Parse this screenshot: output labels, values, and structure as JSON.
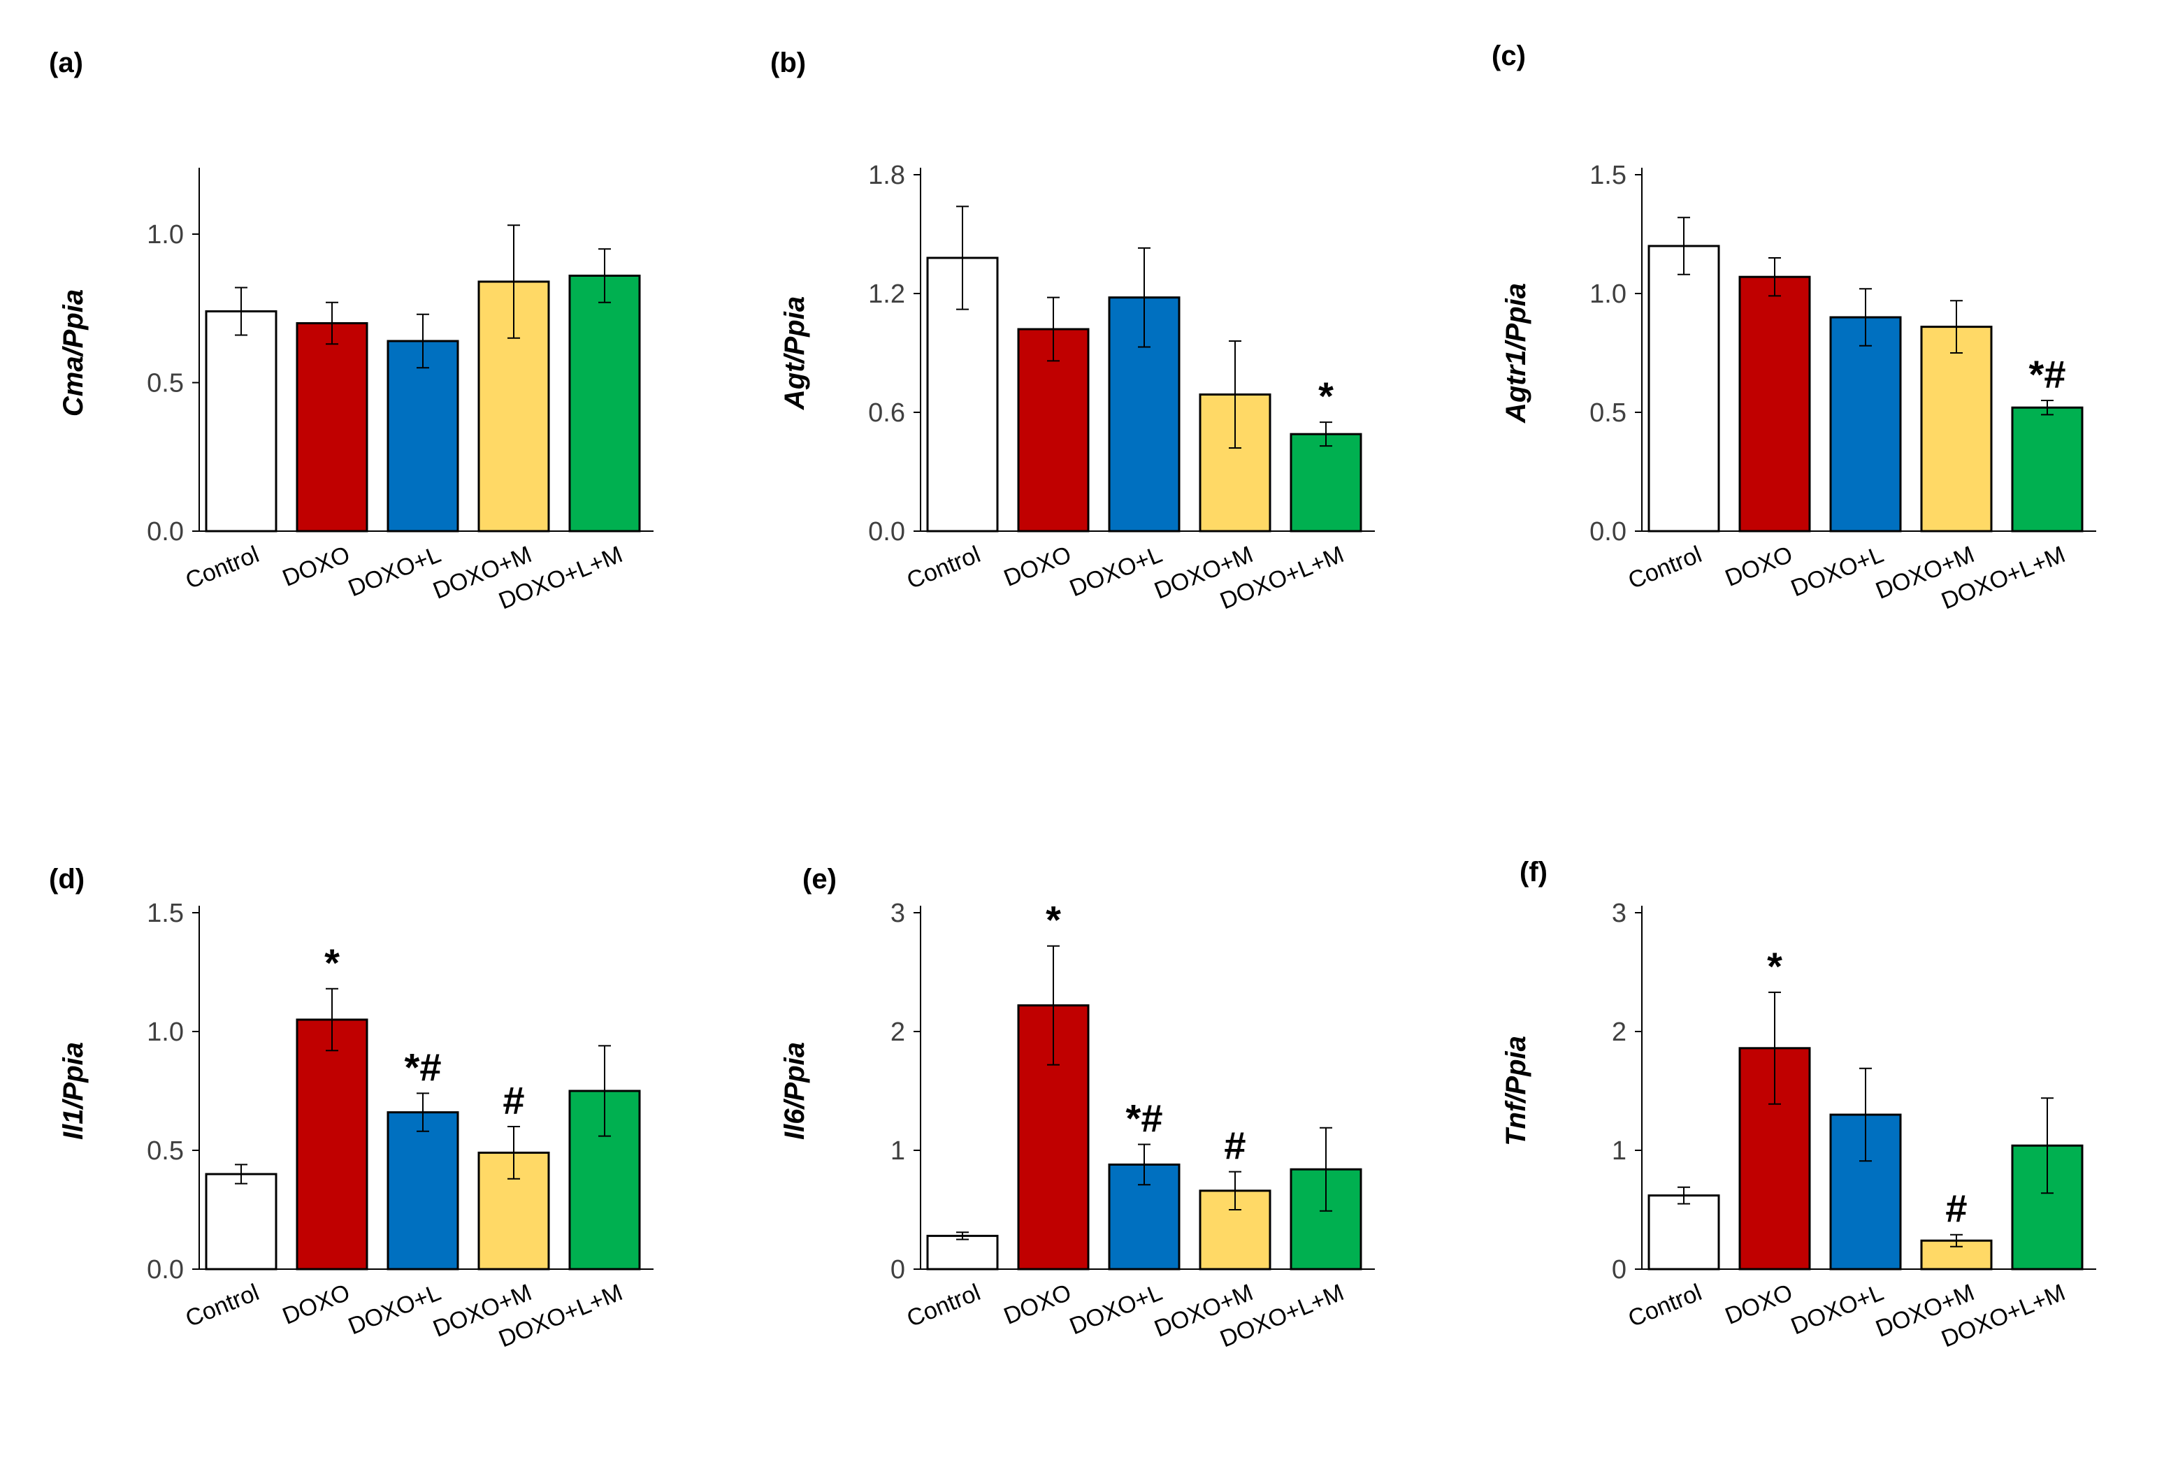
{
  "figure": {
    "colors": {
      "Control": "#ffffff",
      "DOXO": "#c00000",
      "DOXO+L": "#0070c0",
      "DOXO+M": "#ffd966",
      "DOXO+L+M": "#00b050"
    },
    "axis_color": "#000000",
    "tick_text_color": "#404040"
  },
  "chart_data": [
    {
      "panel": "(a)",
      "type": "bar",
      "ylabel": "Cma/Ppia",
      "categories": [
        "Control",
        "DOXO",
        "DOXO+L",
        "DOXO+M",
        "DOXO+L+M"
      ],
      "values": [
        0.74,
        0.7,
        0.64,
        0.84,
        0.86
      ],
      "errors": [
        0.08,
        0.07,
        0.09,
        0.19,
        0.09
      ],
      "annotations": [
        "",
        "",
        "",
        "",
        ""
      ],
      "yticks": [
        "0.0",
        "0.5",
        "1.0"
      ],
      "ytick_values": [
        0,
        0.5,
        1.0
      ],
      "ylim": [
        0,
        1.2
      ]
    },
    {
      "panel": "(b)",
      "type": "bar",
      "ylabel": "Agt/Ppia",
      "categories": [
        "Control",
        "DOXO",
        "DOXO+L",
        "DOXO+M",
        "DOXO+L+M"
      ],
      "values": [
        1.38,
        1.02,
        1.18,
        0.69,
        0.49
      ],
      "errors": [
        0.26,
        0.16,
        0.25,
        0.27,
        0.06
      ],
      "annotations": [
        "",
        "",
        "",
        "",
        "*"
      ],
      "yticks": [
        "0.0",
        "0.6",
        "1.2",
        "1.8"
      ],
      "ytick_values": [
        0,
        0.6,
        1.2,
        1.8
      ],
      "ylim": [
        0,
        1.8
      ]
    },
    {
      "panel": "(c)",
      "type": "bar",
      "ylabel": "Agtr1/Ppia",
      "categories": [
        "Control",
        "DOXO",
        "DOXO+L",
        "DOXO+M",
        "DOXO+L+M"
      ],
      "values": [
        1.2,
        1.07,
        0.9,
        0.86,
        0.52
      ],
      "errors": [
        0.12,
        0.08,
        0.12,
        0.11,
        0.03
      ],
      "annotations": [
        "",
        "",
        "",
        "",
        "*#"
      ],
      "yticks": [
        "0.0",
        "0.5",
        "1.0",
        "1.5"
      ],
      "ytick_values": [
        0,
        0.5,
        1.0,
        1.5
      ],
      "ylim": [
        0,
        1.5
      ]
    },
    {
      "panel": "(d)",
      "type": "bar",
      "ylabel": "Il1/Ppia",
      "categories": [
        "Control",
        "DOXO",
        "DOXO+L",
        "DOXO+M",
        "DOXO+L+M"
      ],
      "values": [
        0.4,
        1.05,
        0.66,
        0.49,
        0.75
      ],
      "errors": [
        0.04,
        0.13,
        0.08,
        0.11,
        0.19
      ],
      "annotations": [
        "",
        "*",
        "*#",
        "#",
        ""
      ],
      "yticks": [
        "0.0",
        "0.5",
        "1.0",
        "1.5"
      ],
      "ytick_values": [
        0,
        0.5,
        1.0,
        1.5
      ],
      "ylim": [
        0,
        1.5
      ]
    },
    {
      "panel": "(e)",
      "type": "bar",
      "ylabel": "Il6/Ppia",
      "categories": [
        "Control",
        "DOXO",
        "DOXO+L",
        "DOXO+M",
        "DOXO+L+M"
      ],
      "values": [
        0.28,
        2.22,
        0.88,
        0.66,
        0.84
      ],
      "errors": [
        0.03,
        0.5,
        0.17,
        0.16,
        0.35
      ],
      "annotations": [
        "",
        "*",
        "*#",
        "#",
        ""
      ],
      "yticks": [
        "0",
        "1",
        "2",
        "3"
      ],
      "ytick_values": [
        0,
        1,
        2,
        3
      ],
      "ylim": [
        0,
        3
      ]
    },
    {
      "panel": "(f)",
      "type": "bar",
      "ylabel": "Tnf/Ppia",
      "categories": [
        "Control",
        "DOXO",
        "DOXO+L",
        "DOXO+M",
        "DOXO+L+M"
      ],
      "values": [
        0.62,
        1.86,
        1.3,
        0.24,
        1.04
      ],
      "errors": [
        0.07,
        0.47,
        0.39,
        0.05,
        0.4
      ],
      "annotations": [
        "",
        "*",
        "",
        "#",
        ""
      ],
      "yticks": [
        "0",
        "1",
        "2",
        "3"
      ],
      "ytick_values": [
        0,
        1,
        2,
        3
      ],
      "ylim": [
        0,
        3
      ]
    }
  ]
}
